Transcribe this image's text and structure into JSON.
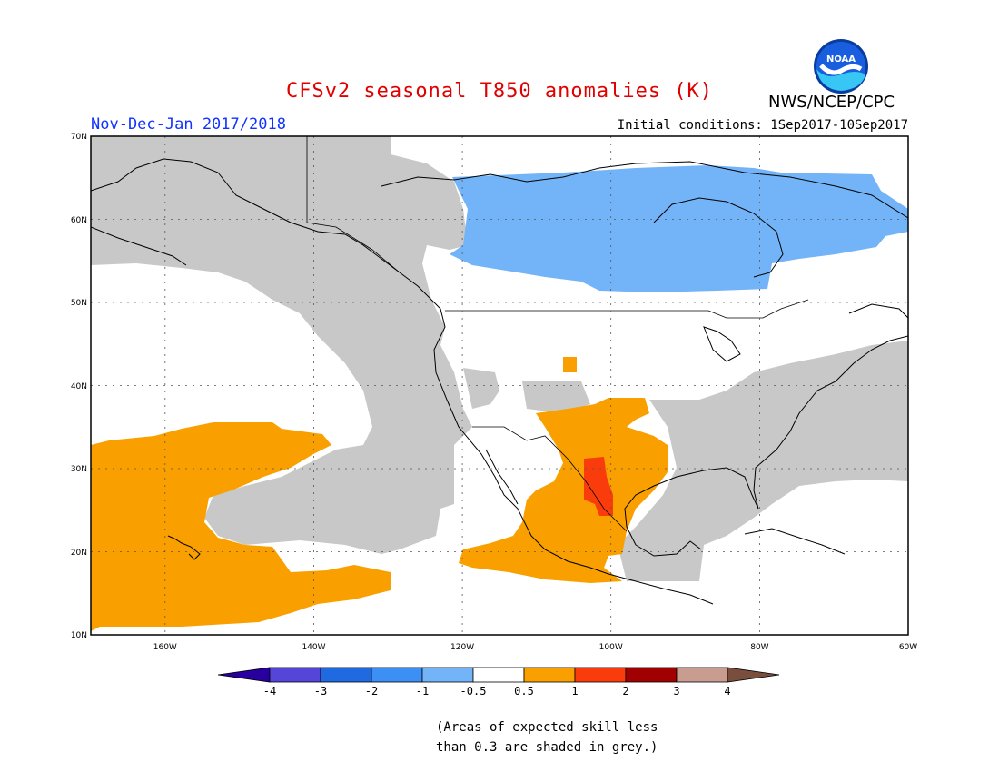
{
  "header": {
    "title": "CFSv2 seasonal T850 anomalies (K)",
    "agency": "NWS/NCEP/CPC",
    "logo_text": "NOAA",
    "season": "Nov-Dec-Jan 2017/2018",
    "initial_conditions": "Initial conditions: 1Sep2017-10Sep2017"
  },
  "map": {
    "lon_range": [
      -170,
      -60
    ],
    "lat_range": [
      10,
      70
    ],
    "lat_labels": [
      "10N",
      "20N",
      "30N",
      "40N",
      "50N",
      "60N",
      "70N"
    ],
    "lon_labels": [
      "160W",
      "140W",
      "120W",
      "100W",
      "80W",
      "60W"
    ],
    "skill_mask_color": "#c8c8c8",
    "anomaly_colors": {
      "cool_light": "#73b4f8",
      "warm_orange": "#f9a000",
      "warm_red": "#fa3c0c"
    }
  },
  "colorbar": {
    "labels": [
      "-4",
      "-3",
      "-2",
      "-1",
      "-0.5",
      "0.5",
      "1",
      "2",
      "3",
      "4"
    ],
    "colors": [
      "#2800a0",
      "#5545d8",
      "#1f6ae0",
      "#3c8ff4",
      "#73b4f8",
      "#ffffff",
      "#f9a000",
      "#fa3c0c",
      "#a00000",
      "#c89d90",
      "#7a4e3c"
    ]
  },
  "footnote": {
    "line1": "(Areas of expected skill less",
    "line2": "than 0.3 are shaded in grey.)"
  }
}
